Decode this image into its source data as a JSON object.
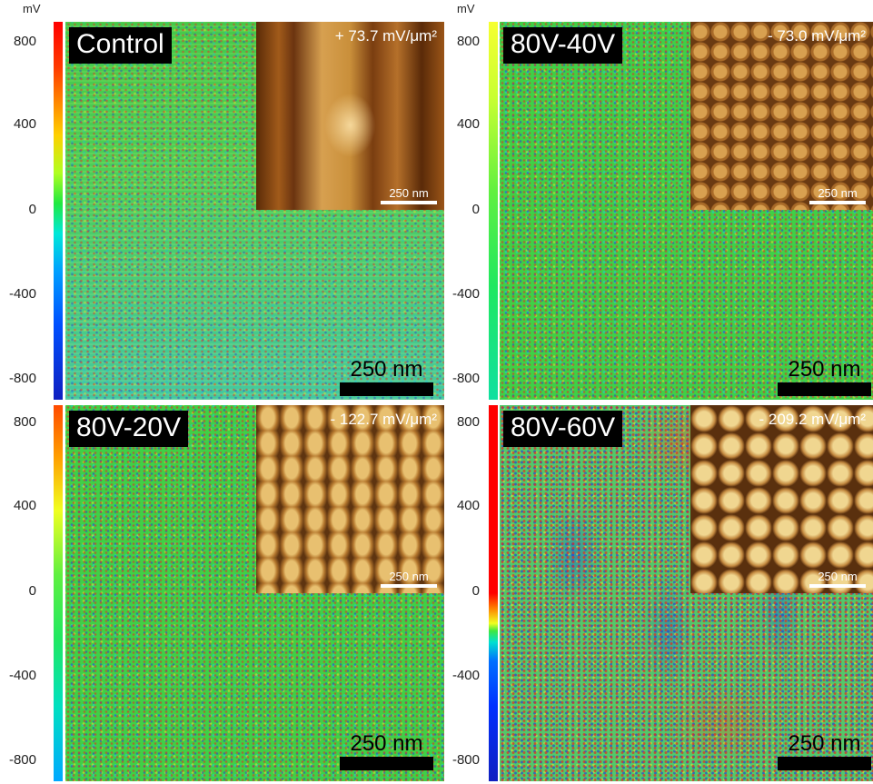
{
  "colorbar_unit": "mV",
  "tick_labels": [
    "800",
    "400",
    "0",
    "-400",
    "-800"
  ],
  "panels": [
    {
      "label": "Control",
      "inset_value": "+ 73.7 mV/μm²",
      "inset_scale": "250 nm",
      "map_scale": "250 nm"
    },
    {
      "label": "80V-40V",
      "inset_value": "- 73.0 mV/μm²",
      "inset_scale": "250 nm",
      "map_scale": "250 nm"
    },
    {
      "label": "80V-20V",
      "inset_value": "- 122.7 mV/μm²",
      "inset_scale": "250 nm",
      "map_scale": "250 nm"
    },
    {
      "label": "80V-60V",
      "inset_value": "- 209.2 mV/μm²",
      "inset_scale": "250 nm",
      "map_scale": "250 nm"
    }
  ],
  "colors": {
    "background": "#ffffff",
    "label_bg": "#000000",
    "label_text": "#ffffff"
  }
}
